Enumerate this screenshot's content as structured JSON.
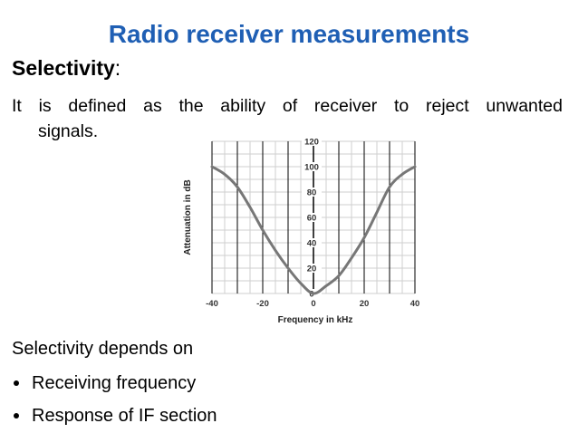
{
  "slide": {
    "title": "Radio receiver measurements",
    "title_color": "#1f5fb4",
    "heading": "Selectivity",
    "heading_suffix": ":",
    "definition_line1": "It is defined as the ability of receiver to reject unwanted",
    "definition_line2": "signals.",
    "depends_text": "Selectivity depends on",
    "bullets": [
      {
        "text": "Receiving frequency"
      },
      {
        "text": "Response of IF section"
      }
    ]
  },
  "chart_data": {
    "type": "line",
    "xlabel": "Frequency in kHz",
    "ylabel": "Attenuation in dB",
    "xlim": [
      -40,
      40
    ],
    "ylim": [
      0,
      120
    ],
    "x_ticks": [
      "-40",
      "-20",
      "0",
      "20",
      "40"
    ],
    "y_ticks": [
      "0",
      "20",
      "40",
      "60",
      "80",
      "100",
      "120"
    ],
    "grid": true,
    "series": [
      {
        "x": [
          -40,
          -35,
          -30,
          -25,
          -20,
          -15,
          -10,
          -5,
          0,
          5,
          10,
          15,
          20,
          25,
          30,
          35,
          40
        ],
        "values": [
          100,
          94,
          84,
          68,
          50,
          34,
          20,
          8,
          0,
          6,
          14,
          28,
          44,
          64,
          84,
          94,
          100
        ],
        "color": "#777777"
      }
    ]
  }
}
